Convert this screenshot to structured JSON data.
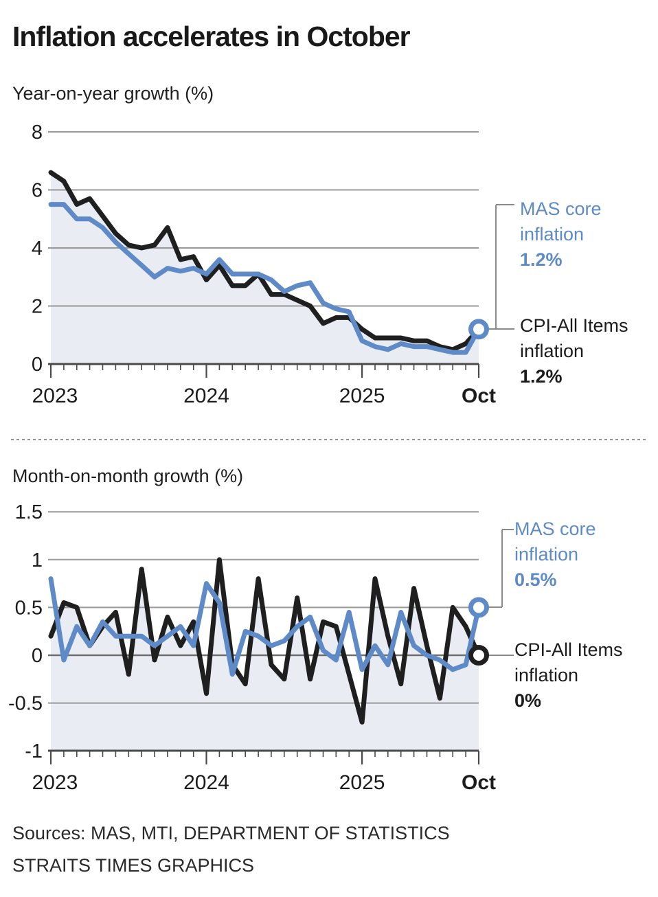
{
  "title": "Inflation accelerates in October",
  "source": {
    "line1": "Sources: MAS, MTI, DEPARTMENT OF STATISTICS",
    "line2": "STRAITS TIMES GRAPHICS"
  },
  "colors": {
    "cpi": "#1f1f1f",
    "core": "#5e8bc7",
    "area_fill": "#e9edf3",
    "grid": "#989898",
    "grid_strong": "#6e6e6e",
    "axis": "#4a4a4a",
    "connector": "#8a8a8a",
    "text": "#1c1c1c"
  },
  "chart_data": [
    {
      "type": "line",
      "title": "Year-on-year growth (%)",
      "x": [
        "Jan 2023",
        "Feb 2023",
        "Mar 2023",
        "Apr 2023",
        "May 2023",
        "Jun 2023",
        "Jul 2023",
        "Aug 2023",
        "Sep 2023",
        "Oct 2023",
        "Nov 2023",
        "Dec 2023",
        "Jan 2024",
        "Feb 2024",
        "Mar 2024",
        "Apr 2024",
        "May 2024",
        "Jun 2024",
        "Jul 2024",
        "Aug 2024",
        "Sep 2024",
        "Oct 2024",
        "Nov 2024",
        "Dec 2024",
        "Jan 2025",
        "Feb 2025",
        "Mar 2025",
        "Apr 2025",
        "May 2025",
        "Jun 2025",
        "Jul 2025",
        "Aug 2025",
        "Sep 2025",
        "Oct 2025"
      ],
      "series": [
        {
          "name": "CPI-All Items inflation",
          "color_key": "cpi",
          "values": [
            6.6,
            6.3,
            5.5,
            5.7,
            5.1,
            4.5,
            4.1,
            4.0,
            4.1,
            4.7,
            3.6,
            3.7,
            2.9,
            3.4,
            2.7,
            2.7,
            3.1,
            2.4,
            2.4,
            2.2,
            2.0,
            1.4,
            1.6,
            1.6,
            1.2,
            0.9,
            0.9,
            0.9,
            0.8,
            0.8,
            0.6,
            0.5,
            0.7,
            1.2
          ]
        },
        {
          "name": "MAS core inflation",
          "color_key": "core",
          "values": [
            5.5,
            5.5,
            5.0,
            5.0,
            4.7,
            4.2,
            3.8,
            3.4,
            3.0,
            3.3,
            3.2,
            3.3,
            3.1,
            3.6,
            3.1,
            3.1,
            3.1,
            2.9,
            2.5,
            2.7,
            2.8,
            2.1,
            1.9,
            1.8,
            0.8,
            0.6,
            0.5,
            0.7,
            0.6,
            0.6,
            0.5,
            0.4,
            0.4,
            1.2
          ]
        }
      ],
      "ylim": [
        0,
        8
      ],
      "ygrid": [
        8,
        6,
        4,
        2
      ],
      "ygrid_strong": [],
      "baseline": 0,
      "grid_on": true,
      "legend_position": "right-annotations",
      "y_tick_labels": [
        {
          "label": "8",
          "v": 8
        },
        {
          "label": "6",
          "v": 6
        },
        {
          "label": "4",
          "v": 4
        },
        {
          "label": "2",
          "v": 2
        },
        {
          "label": "0",
          "v": 0
        }
      ],
      "x_axis_labels": [
        {
          "label": "2023",
          "i": 0,
          "bold": false
        },
        {
          "label": "2024",
          "i": 12,
          "bold": false
        },
        {
          "label": "2025",
          "i": 24,
          "bold": false
        },
        {
          "label": "Oct",
          "i": 33,
          "bold": true
        }
      ],
      "annotations": [
        {
          "target": "MAS core inflation",
          "line1": "MAS core",
          "line2": "inflation",
          "value": "1.2%"
        },
        {
          "target": "CPI-All Items inflation",
          "line1": "CPI-All Items",
          "line2": "inflation",
          "value": "1.2%"
        }
      ]
    },
    {
      "type": "line",
      "title": "Month-on-month growth (%)",
      "x": [
        "Jan 2023",
        "Feb 2023",
        "Mar 2023",
        "Apr 2023",
        "May 2023",
        "Jun 2023",
        "Jul 2023",
        "Aug 2023",
        "Sep 2023",
        "Oct 2023",
        "Nov 2023",
        "Dec 2023",
        "Jan 2024",
        "Feb 2024",
        "Mar 2024",
        "Apr 2024",
        "May 2024",
        "Jun 2024",
        "Jul 2024",
        "Aug 2024",
        "Sep 2024",
        "Oct 2024",
        "Nov 2024",
        "Dec 2024",
        "Jan 2025",
        "Feb 2025",
        "Mar 2025",
        "Apr 2025",
        "May 2025",
        "Jun 2025",
        "Jul 2025",
        "Aug 2025",
        "Sep 2025",
        "Oct 2025"
      ],
      "series": [
        {
          "name": "CPI-All Items inflation",
          "color_key": "cpi",
          "values": [
            0.2,
            0.55,
            0.5,
            0.1,
            0.3,
            0.45,
            -0.2,
            0.9,
            -0.05,
            0.4,
            0.1,
            0.35,
            -0.4,
            1.0,
            -0.1,
            -0.3,
            0.8,
            -0.1,
            -0.25,
            0.6,
            -0.25,
            0.35,
            0.3,
            -0.2,
            -0.7,
            0.8,
            0.2,
            -0.3,
            0.7,
            0.1,
            -0.45,
            0.5,
            0.3,
            0.0
          ]
        },
        {
          "name": "MAS core inflation",
          "color_key": "core",
          "values": [
            0.8,
            -0.05,
            0.3,
            0.1,
            0.35,
            0.2,
            0.2,
            0.2,
            0.1,
            0.2,
            0.3,
            0.1,
            0.75,
            0.55,
            -0.2,
            0.25,
            0.2,
            0.1,
            0.15,
            0.3,
            0.4,
            0.05,
            -0.05,
            0.45,
            -0.15,
            0.1,
            -0.1,
            0.45,
            0.1,
            0.0,
            -0.05,
            -0.15,
            -0.1,
            0.5
          ]
        }
      ],
      "ylim": [
        -1,
        1.5
      ],
      "ygrid": [
        1.5,
        1,
        0.5,
        -0.5
      ],
      "ygrid_strong": [
        0
      ],
      "baseline": -1,
      "grid_on": true,
      "legend_position": "right-annotations",
      "y_tick_labels": [
        {
          "label": "1.5",
          "v": 1.5
        },
        {
          "label": "1",
          "v": 1
        },
        {
          "label": "0.5",
          "v": 0.5
        },
        {
          "label": "0",
          "v": 0
        },
        {
          "label": "-0.5",
          "v": -0.5
        },
        {
          "label": "-1",
          "v": -1
        }
      ],
      "x_axis_labels": [
        {
          "label": "2023",
          "i": 0,
          "bold": false
        },
        {
          "label": "2024",
          "i": 12,
          "bold": false
        },
        {
          "label": "2025",
          "i": 24,
          "bold": false
        },
        {
          "label": "Oct",
          "i": 33,
          "bold": true
        }
      ],
      "annotations": [
        {
          "target": "MAS core inflation",
          "line1": "MAS core",
          "line2": "inflation",
          "value": "0.5%"
        },
        {
          "target": "CPI-All Items inflation",
          "line1": "CPI-All Items",
          "line2": "inflation",
          "value": "0%"
        }
      ]
    }
  ]
}
